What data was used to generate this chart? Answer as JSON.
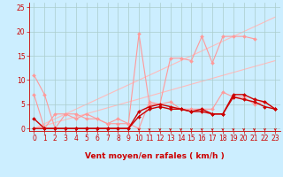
{
  "bg_color": "#cceeff",
  "grid_color": "#aacccc",
  "xlabel": "Vent moyen/en rafales ( km/h )",
  "xlim": [
    -0.5,
    23.5
  ],
  "ylim": [
    -0.5,
    26
  ],
  "yticks": [
    0,
    5,
    10,
    15,
    20,
    25
  ],
  "xticks": [
    0,
    1,
    2,
    3,
    4,
    5,
    6,
    7,
    8,
    9,
    10,
    11,
    12,
    13,
    14,
    15,
    16,
    17,
    18,
    19,
    20,
    21,
    22,
    23
  ],
  "series": [
    {
      "label": "pink_spiky",
      "x": [
        0,
        1,
        2,
        3,
        4,
        5,
        6,
        7,
        8,
        9,
        10,
        11,
        12,
        13,
        14,
        15,
        16,
        17,
        18,
        19,
        20,
        21
      ],
      "y": [
        11,
        7,
        0,
        3,
        2,
        3,
        2,
        1,
        1,
        1,
        19.5,
        5,
        5,
        14.5,
        14.5,
        14,
        19,
        13.5,
        19,
        19,
        19,
        18.5
      ],
      "color": "#ff9999",
      "lw": 0.8,
      "marker": "D",
      "ms": 2.0,
      "zorder": 2
    },
    {
      "label": "pink_lower",
      "x": [
        0,
        1,
        2,
        3,
        4,
        5,
        6,
        7,
        8,
        9,
        10,
        11,
        12,
        13,
        14,
        15,
        16,
        17,
        18,
        19,
        20,
        21,
        22,
        23
      ],
      "y": [
        7,
        0,
        3,
        3,
        3,
        2,
        2,
        1,
        2,
        1,
        0,
        5.5,
        5,
        5.5,
        4,
        4,
        4,
        4,
        7.5,
        6.5,
        6.5,
        5,
        5.5,
        4
      ],
      "color": "#ff9999",
      "lw": 0.8,
      "marker": "D",
      "ms": 2.0,
      "zorder": 2
    },
    {
      "label": "red_upper",
      "x": [
        0,
        1,
        2,
        3,
        4,
        5,
        6,
        7,
        8,
        9,
        10,
        11,
        12,
        13,
        14,
        15,
        16,
        17,
        18,
        19,
        20,
        21,
        22,
        23
      ],
      "y": [
        2,
        0,
        0,
        0,
        0,
        0,
        0,
        0,
        0,
        0,
        3.5,
        4.5,
        5,
        4.5,
        4,
        3.5,
        4,
        3,
        3,
        7,
        7,
        6,
        5.5,
        4
      ],
      "color": "#cc0000",
      "lw": 1.0,
      "marker": "D",
      "ms": 2.0,
      "zorder": 3
    },
    {
      "label": "red_lower",
      "x": [
        0,
        1,
        2,
        3,
        4,
        5,
        6,
        7,
        8,
        9,
        10,
        11,
        12,
        13,
        14,
        15,
        16,
        17,
        18,
        19,
        20,
        21,
        22,
        23
      ],
      "y": [
        0,
        0,
        0,
        0,
        0,
        0,
        0,
        0,
        0,
        0,
        2.5,
        4,
        4.5,
        4,
        4,
        3.5,
        3.5,
        3,
        3,
        6.5,
        6,
        5.5,
        4.5,
        4
      ],
      "color": "#cc0000",
      "lw": 1.0,
      "marker": "D",
      "ms": 2.0,
      "zorder": 3
    },
    {
      "label": "ref_line_upper",
      "x": [
        0,
        23
      ],
      "y": [
        0,
        23
      ],
      "color": "#ffbbbb",
      "lw": 0.8,
      "marker": null,
      "ms": 0,
      "zorder": 1
    },
    {
      "label": "ref_line_lower",
      "x": [
        0,
        23
      ],
      "y": [
        0,
        14
      ],
      "color": "#ffbbbb",
      "lw": 0.8,
      "marker": null,
      "ms": 0,
      "zorder": 1
    }
  ],
  "arrow_color": "#cc0000",
  "axis_label_fontsize": 6.5,
  "tick_fontsize": 5.5
}
